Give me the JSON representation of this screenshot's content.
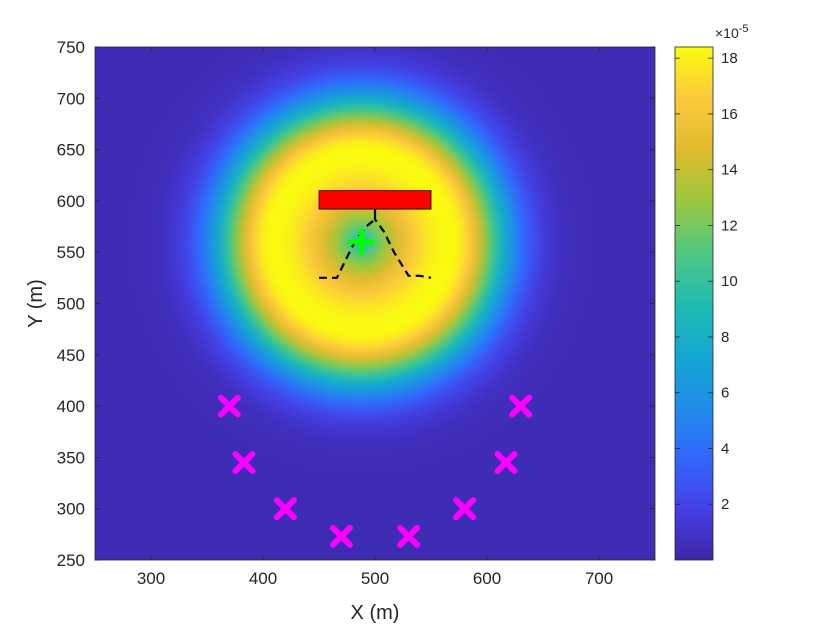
{
  "chart_data": {
    "type": "heatmap",
    "title": "",
    "xlabel": "X (m)",
    "ylabel": "Y (m)",
    "xlim": [
      250,
      750
    ],
    "ylim": [
      250,
      750
    ],
    "xticks": [
      300,
      400,
      500,
      600,
      700
    ],
    "yticks": [
      250,
      300,
      350,
      400,
      450,
      500,
      550,
      600,
      650,
      700,
      750
    ],
    "grid": false,
    "colormap": "parula",
    "field": {
      "center": [
        488,
        560
      ],
      "peak_radius": 80,
      "peak_value": 18.4,
      "center_value": 9,
      "outer_value": 0.4
    },
    "colorbar": {
      "range": [
        0,
        18.4
      ],
      "ticks": [
        2,
        4,
        6,
        8,
        10,
        12,
        14,
        16,
        18
      ],
      "exponent_label": "×10",
      "exponent_power": "-5"
    },
    "rectangle": {
      "x": [
        450,
        550
      ],
      "y": [
        592,
        610
      ],
      "color": "#ff0000"
    },
    "dashed_path": [
      [
        450,
        525
      ],
      [
        466,
        525
      ],
      [
        475,
        545
      ],
      [
        482,
        560
      ],
      [
        492,
        575
      ],
      [
        500,
        582
      ],
      [
        500,
        592
      ],
      [
        500,
        582
      ],
      [
        508,
        570
      ],
      [
        517,
        550
      ],
      [
        530,
        527
      ],
      [
        540,
        527
      ],
      [
        550,
        525
      ]
    ],
    "source_marker": {
      "x": 488,
      "y": 560,
      "color": "#00ff00"
    },
    "receivers": {
      "color": "#ff00ff",
      "points": [
        {
          "x": 370,
          "y": 400
        },
        {
          "x": 383,
          "y": 345
        },
        {
          "x": 420,
          "y": 300
        },
        {
          "x": 470,
          "y": 273
        },
        {
          "x": 530,
          "y": 273
        },
        {
          "x": 580,
          "y": 300
        },
        {
          "x": 617,
          "y": 345
        },
        {
          "x": 630,
          "y": 400
        }
      ]
    }
  }
}
